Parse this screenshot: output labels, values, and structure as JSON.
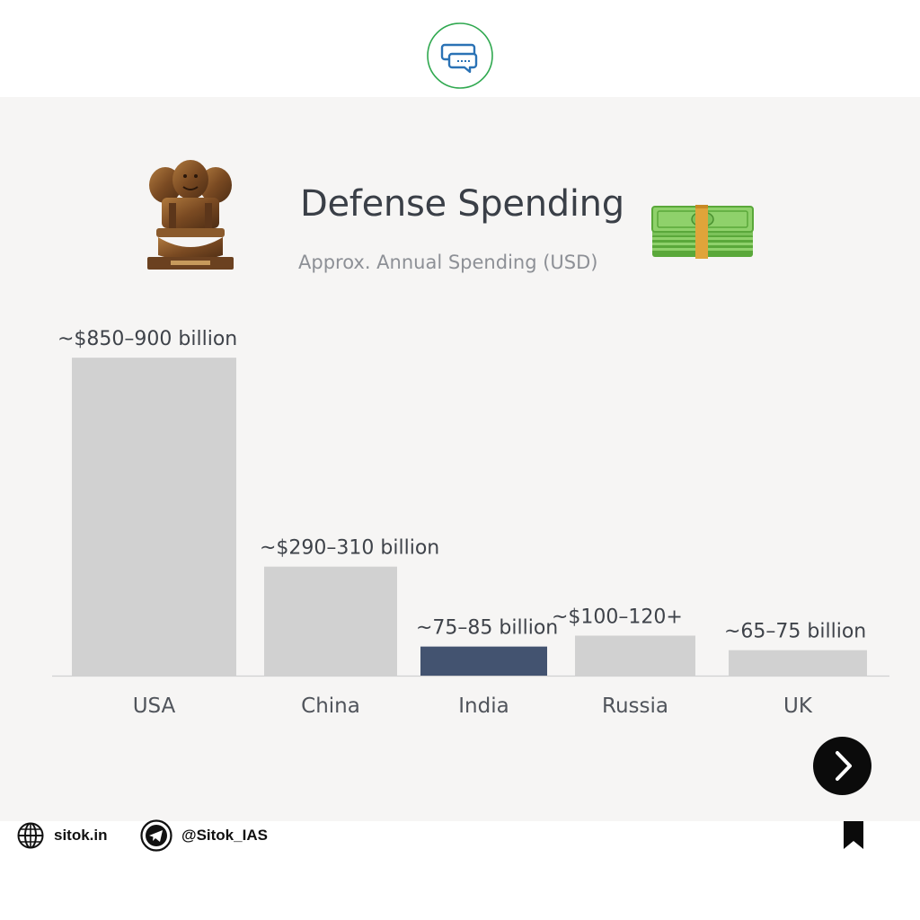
{
  "header": {
    "logo_icon": "chat-bubbles-logo-icon",
    "accent": "#2fa84f"
  },
  "chart_data": {
    "type": "bar",
    "title": "Defense Spending",
    "subtitle": "Approx. Annual Spending (USD)",
    "categories": [
      "USA",
      "China",
      "India",
      "Russia",
      "UK"
    ],
    "values": [
      875,
      300,
      80,
      110,
      70
    ],
    "value_labels": [
      "~$850–900 billion",
      "~$290–310 billion",
      "~75–85 billion",
      "~$100–120+",
      "~65–75 billion"
    ],
    "highlight": "India",
    "colors": {
      "default": "#d1d1d1",
      "highlight": "#435370",
      "axis": "#d0d0d0"
    },
    "grid": false,
    "legend": "none",
    "ylim": [
      0,
      900
    ]
  },
  "decor": {
    "left_image": "national-emblem-lion-capital-icon",
    "right_image": "money-stack-icon"
  },
  "navigation": {
    "next_icon": "chevron-right-icon"
  },
  "footer": {
    "website": "sitok.in",
    "website_icon": "globe-icon",
    "telegram": "@Sitok_IAS",
    "telegram_icon": "telegram-icon",
    "bookmark_icon": "bookmark-icon"
  }
}
